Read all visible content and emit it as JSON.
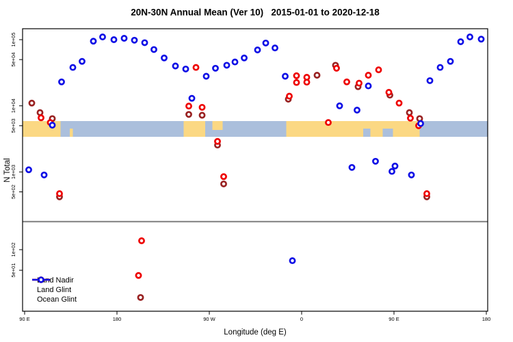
{
  "title": "20N-30N Annual Mean (Ver 10)   2015-01-01 to 2020-12-18",
  "x_axis": {
    "label": "Longitude (deg E)",
    "ticks": [
      {
        "lon": 90,
        "label": "90 E"
      },
      {
        "lon": 180,
        "label": "180"
      },
      {
        "lon": 270,
        "label": "90 W"
      },
      {
        "lon": 360,
        "label": "0"
      },
      {
        "lon": 450,
        "label": "90 E"
      },
      {
        "lon": 540,
        "label": "180"
      }
    ]
  },
  "y_axis": {
    "label": "N Total",
    "scale": "log",
    "ticks_upper_panel": [
      {
        "value": 100000,
        "label": "1e+05"
      },
      {
        "value": 50000,
        "label": "5e+04"
      },
      {
        "value": 10000,
        "label": "1e+04"
      },
      {
        "value": 5000,
        "label": "5e+03"
      },
      {
        "value": 1000,
        "label": "1e+03"
      },
      {
        "value": 500,
        "label": "5e+02"
      }
    ],
    "ticks_lower_panel": [
      {
        "value": 100,
        "label": "1e+02"
      },
      {
        "value": 50,
        "label": "5e+01"
      }
    ]
  },
  "legend": [
    {
      "label": "Land Nadir",
      "color": "#992222"
    },
    {
      "label": "Land Glint",
      "color": "#EE0000"
    },
    {
      "label": "Ocean Glint",
      "color": "#0F0FE6"
    }
  ],
  "colors": {
    "land_nadir": "#992222",
    "land_glint": "#EE0000",
    "ocean_glint": "#0F0FE6",
    "map_land": "#FBD883",
    "map_ocean": "#ABBFDC",
    "panel_divider": "#8C8C8C",
    "axis": "#000000"
  },
  "chart_data": {
    "type": "scatter",
    "title": "20N-30N Annual Mean (Ver 10)   2015-01-01 to 2020-12-18",
    "xlabel": "Longitude (deg E)",
    "ylabel": "N Total",
    "x_convention": "degrees east, starting 90E and increasing eastward to 540 (=180 after full wrap)",
    "x_range": [
      88,
      541.5
    ],
    "y_scale": "log10, split panel: upper >=300, lower <300",
    "marker": "open-circle",
    "series": [
      {
        "name": "Land Nadir",
        "color": "#992222",
        "points": [
          [
            97,
            11000
          ],
          [
            105,
            7900
          ],
          [
            117,
            6400
          ],
          [
            124,
            420
          ],
          [
            250,
            7400
          ],
          [
            263,
            7200
          ],
          [
            278,
            2550
          ],
          [
            284,
            660
          ],
          [
            347,
            12600
          ],
          [
            375,
            29000
          ],
          [
            393,
            41000
          ],
          [
            415,
            19500
          ],
          [
            446,
            14500
          ],
          [
            465,
            7900
          ],
          [
            475,
            6400
          ],
          [
            482,
            420
          ],
          [
            203,
            20
          ]
        ]
      },
      {
        "name": "Land Glint",
        "color": "#EE0000",
        "points": [
          [
            106,
            6600
          ],
          [
            115,
            5600
          ],
          [
            124,
            470
          ],
          [
            250,
            9900
          ],
          [
            257,
            38000
          ],
          [
            263,
            9500
          ],
          [
            278,
            2900
          ],
          [
            284,
            850
          ],
          [
            348,
            14000
          ],
          [
            355,
            28500
          ],
          [
            355,
            22500
          ],
          [
            365,
            27000
          ],
          [
            365,
            22800
          ],
          [
            386,
            5600
          ],
          [
            394,
            37000
          ],
          [
            404,
            23000
          ],
          [
            416,
            22000
          ],
          [
            425,
            29000
          ],
          [
            435,
            35000
          ],
          [
            445,
            16000
          ],
          [
            455,
            11000
          ],
          [
            466,
            6500
          ],
          [
            474,
            5000
          ],
          [
            482,
            470
          ],
          [
            204,
            135
          ],
          [
            201,
            42
          ]
        ]
      },
      {
        "name": "Ocean Glint",
        "color": "#0F0FE6",
        "points": [
          [
            94,
            1080
          ],
          [
            109,
            900
          ],
          [
            117,
            5100
          ],
          [
            126,
            23000
          ],
          [
            137,
            38000
          ],
          [
            146,
            47000
          ],
          [
            157,
            95000
          ],
          [
            166,
            110000
          ],
          [
            177,
            100000
          ],
          [
            187,
            105000
          ],
          [
            197,
            98000
          ],
          [
            207,
            90000
          ],
          [
            216,
            71000
          ],
          [
            226,
            53000
          ],
          [
            237,
            40000
          ],
          [
            247,
            36000
          ],
          [
            253,
            13000
          ],
          [
            267,
            28000
          ],
          [
            276,
            37000
          ],
          [
            287,
            41000
          ],
          [
            295,
            46000
          ],
          [
            304,
            53000
          ],
          [
            317,
            70000
          ],
          [
            325,
            89000
          ],
          [
            334,
            75000
          ],
          [
            344,
            28000
          ],
          [
            397,
            10000
          ],
          [
            409,
            1170
          ],
          [
            414,
            8600
          ],
          [
            425,
            20000
          ],
          [
            432,
            1450
          ],
          [
            448,
            1020
          ],
          [
            451,
            1230
          ],
          [
            467,
            900
          ],
          [
            476,
            5400
          ],
          [
            485,
            24000
          ],
          [
            495,
            38000
          ],
          [
            505,
            47000
          ],
          [
            515,
            93000
          ],
          [
            524,
            110000
          ],
          [
            535,
            102000
          ],
          [
            351,
            69
          ]
        ]
      }
    ],
    "map_strip": {
      "description": "land/ocean band for 20N-30N latitude belt",
      "land_segments": [
        {
          "from": 88,
          "to": 125,
          "part": "full"
        },
        {
          "from": 134,
          "to": 137,
          "part": "bottom"
        },
        {
          "from": 245,
          "to": 266,
          "part": "full"
        },
        {
          "from": 273,
          "to": 283,
          "part": "top"
        },
        {
          "from": 345,
          "to": 475,
          "part": "full"
        }
      ],
      "ocean_notches": [
        {
          "from": 420,
          "to": 427,
          "part": "bottom"
        },
        {
          "from": 439,
          "to": 449,
          "part": "bottom"
        }
      ]
    }
  }
}
